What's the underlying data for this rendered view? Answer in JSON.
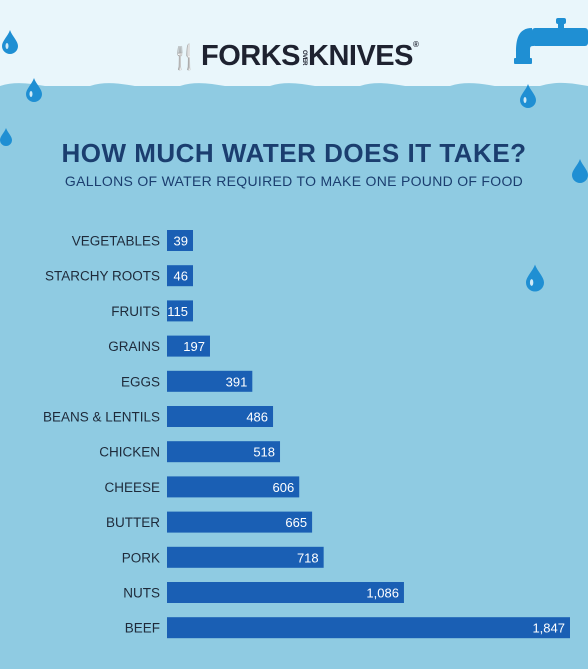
{
  "logo": {
    "forks": "FORKS",
    "over": "OVER",
    "knives": "KNIVES",
    "mark": "®"
  },
  "colors": {
    "background_top": "#e9f6fb",
    "water": "#8fcbe2",
    "bar": "#1a5fb4",
    "title": "#1b3e6f",
    "drop": "#1f8fd3"
  },
  "chart_data": {
    "type": "bar",
    "orientation": "horizontal",
    "title": "HOW MUCH WATER DOES IT TAKE?",
    "subtitle": "GALLONS OF WATER REQUIRED TO MAKE ONE POUND OF FOOD",
    "categories": [
      "VEGETABLES",
      "STARCHY ROOTS",
      "FRUITS",
      "GRAINS",
      "EGGS",
      "BEANS & LENTILS",
      "CHICKEN",
      "CHEESE",
      "BUTTER",
      "PORK",
      "NUTS",
      "BEEF"
    ],
    "values": [
      39,
      46,
      115,
      197,
      391,
      486,
      518,
      606,
      665,
      718,
      1086,
      1847
    ],
    "value_labels": [
      "39",
      "46",
      "115",
      "197",
      "391",
      "486",
      "518",
      "606",
      "665",
      "718",
      "1,086",
      "1,847"
    ],
    "xlim": [
      0,
      1847
    ],
    "grid": false,
    "legend": "none"
  }
}
